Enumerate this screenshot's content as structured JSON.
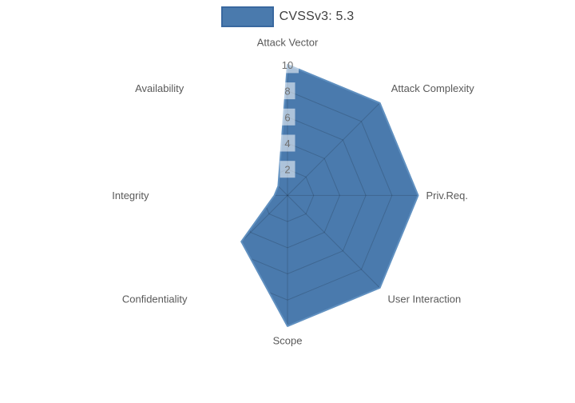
{
  "legend": {
    "label": "CVSSv3: 5.3",
    "swatch_color": "#4a7aad",
    "swatch_border": "#39689f"
  },
  "chart_data": {
    "type": "radar",
    "title": "CVSSv3: 5.3",
    "categories": [
      "Attack Vector",
      "Attack Complexity",
      "Priv.Req.",
      "User Interaction",
      "Scope",
      "Confidentiality",
      "Integrity",
      "Availability"
    ],
    "series": [
      {
        "name": "CVSSv3: 5.3",
        "values": [
          10,
          10,
          10,
          10,
          10,
          5,
          1,
          1
        ]
      }
    ],
    "radial_range": [
      0,
      10
    ],
    "radial_ticks": [
      2,
      4,
      6,
      8,
      10
    ],
    "legend_position": "top-center",
    "grid": "polygonal web, visible only inside filled series area",
    "fill_color": "#4a7aad",
    "line_color": "#6090c0",
    "grid_line_color": "rgba(0,0,0,0.16)",
    "axis_label_color": "#595959",
    "tick_label_color": "#6f6f6f",
    "tick_label_bg": "rgba(255,255,255,0.55)"
  }
}
